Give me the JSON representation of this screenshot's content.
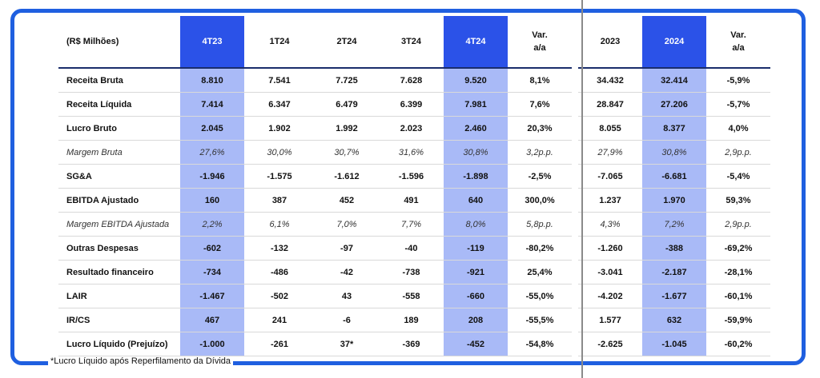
{
  "columns": [
    "(R$ Milhões)",
    "4T23",
    "1T24",
    "2T24",
    "3T24",
    "4T24",
    "Var. a/a",
    "2023",
    "2024",
    "Var. a/a"
  ],
  "rows": [
    {
      "label": "Receita Bruta",
      "style": "bold",
      "values": [
        "8.810",
        "7.541",
        "7.725",
        "7.628",
        "9.520",
        "8,1%",
        "34.432",
        "32.414",
        "-5,9%"
      ]
    },
    {
      "label": "Receita Líquida",
      "style": "bold",
      "values": [
        "7.414",
        "6.347",
        "6.479",
        "6.399",
        "7.981",
        "7,6%",
        "28.847",
        "27.206",
        "-5,7%"
      ]
    },
    {
      "label": "Lucro Bruto",
      "style": "bold",
      "values": [
        "2.045",
        "1.902",
        "1.992",
        "2.023",
        "2.460",
        "20,3%",
        "8.055",
        "8.377",
        "4,0%"
      ]
    },
    {
      "label": "Margem Bruta",
      "style": "ital",
      "values": [
        "27,6%",
        "30,0%",
        "30,7%",
        "31,6%",
        "30,8%",
        "3,2p.p.",
        "27,9%",
        "30,8%",
        "2,9p.p."
      ]
    },
    {
      "label": "SG&A",
      "style": "bold",
      "values": [
        "-1.946",
        "-1.575",
        "-1.612",
        "-1.596",
        "-1.898",
        "-2,5%",
        "-7.065",
        "-6.681",
        "-5,4%"
      ]
    },
    {
      "label": "EBITDA Ajustado",
      "style": "bold",
      "values": [
        "160",
        "387",
        "452",
        "491",
        "640",
        "300,0%",
        "1.237",
        "1.970",
        "59,3%"
      ]
    },
    {
      "label": "Margem EBITDA Ajustada",
      "style": "ital",
      "values": [
        "2,2%",
        "6,1%",
        "7,0%",
        "7,7%",
        "8,0%",
        "5,8p.p.",
        "4,3%",
        "7,2%",
        "2,9p.p."
      ]
    },
    {
      "label": "Outras Despesas",
      "style": "bold",
      "values": [
        "-602",
        "-132",
        "-97",
        "-40",
        "-119",
        "-80,2%",
        "-1.260",
        "-388",
        "-69,2%"
      ]
    },
    {
      "label": "Resultado financeiro",
      "style": "bold",
      "values": [
        "-734",
        "-486",
        "-42",
        "-738",
        "-921",
        "25,4%",
        "-3.041",
        "-2.187",
        "-28,1%"
      ]
    },
    {
      "label": "LAIR",
      "style": "bold",
      "values": [
        "-1.467",
        "-502",
        "43",
        "-558",
        "-660",
        "-55,0%",
        "-4.202",
        "-1.677",
        "-60,1%"
      ]
    },
    {
      "label": "IR/CS",
      "style": "bold",
      "values": [
        "467",
        "241",
        "-6",
        "189",
        "208",
        "-55,5%",
        "1.577",
        "632",
        "-59,9%"
      ]
    },
    {
      "label": "Lucro Líquido (Prejuízo)",
      "style": "bold",
      "values": [
        "-1.000",
        "-261",
        "37*",
        "-369",
        "-452",
        "-54,8%",
        "-2.625",
        "-1.045",
        "-60,2%"
      ]
    }
  ],
  "footnote": "*Lucro Líquido após Reperfilamento da Dívida",
  "colors": {
    "frame": "#1f5fe0",
    "header_highlight": "#2b52e8",
    "column_highlight": "#a9baf7"
  }
}
